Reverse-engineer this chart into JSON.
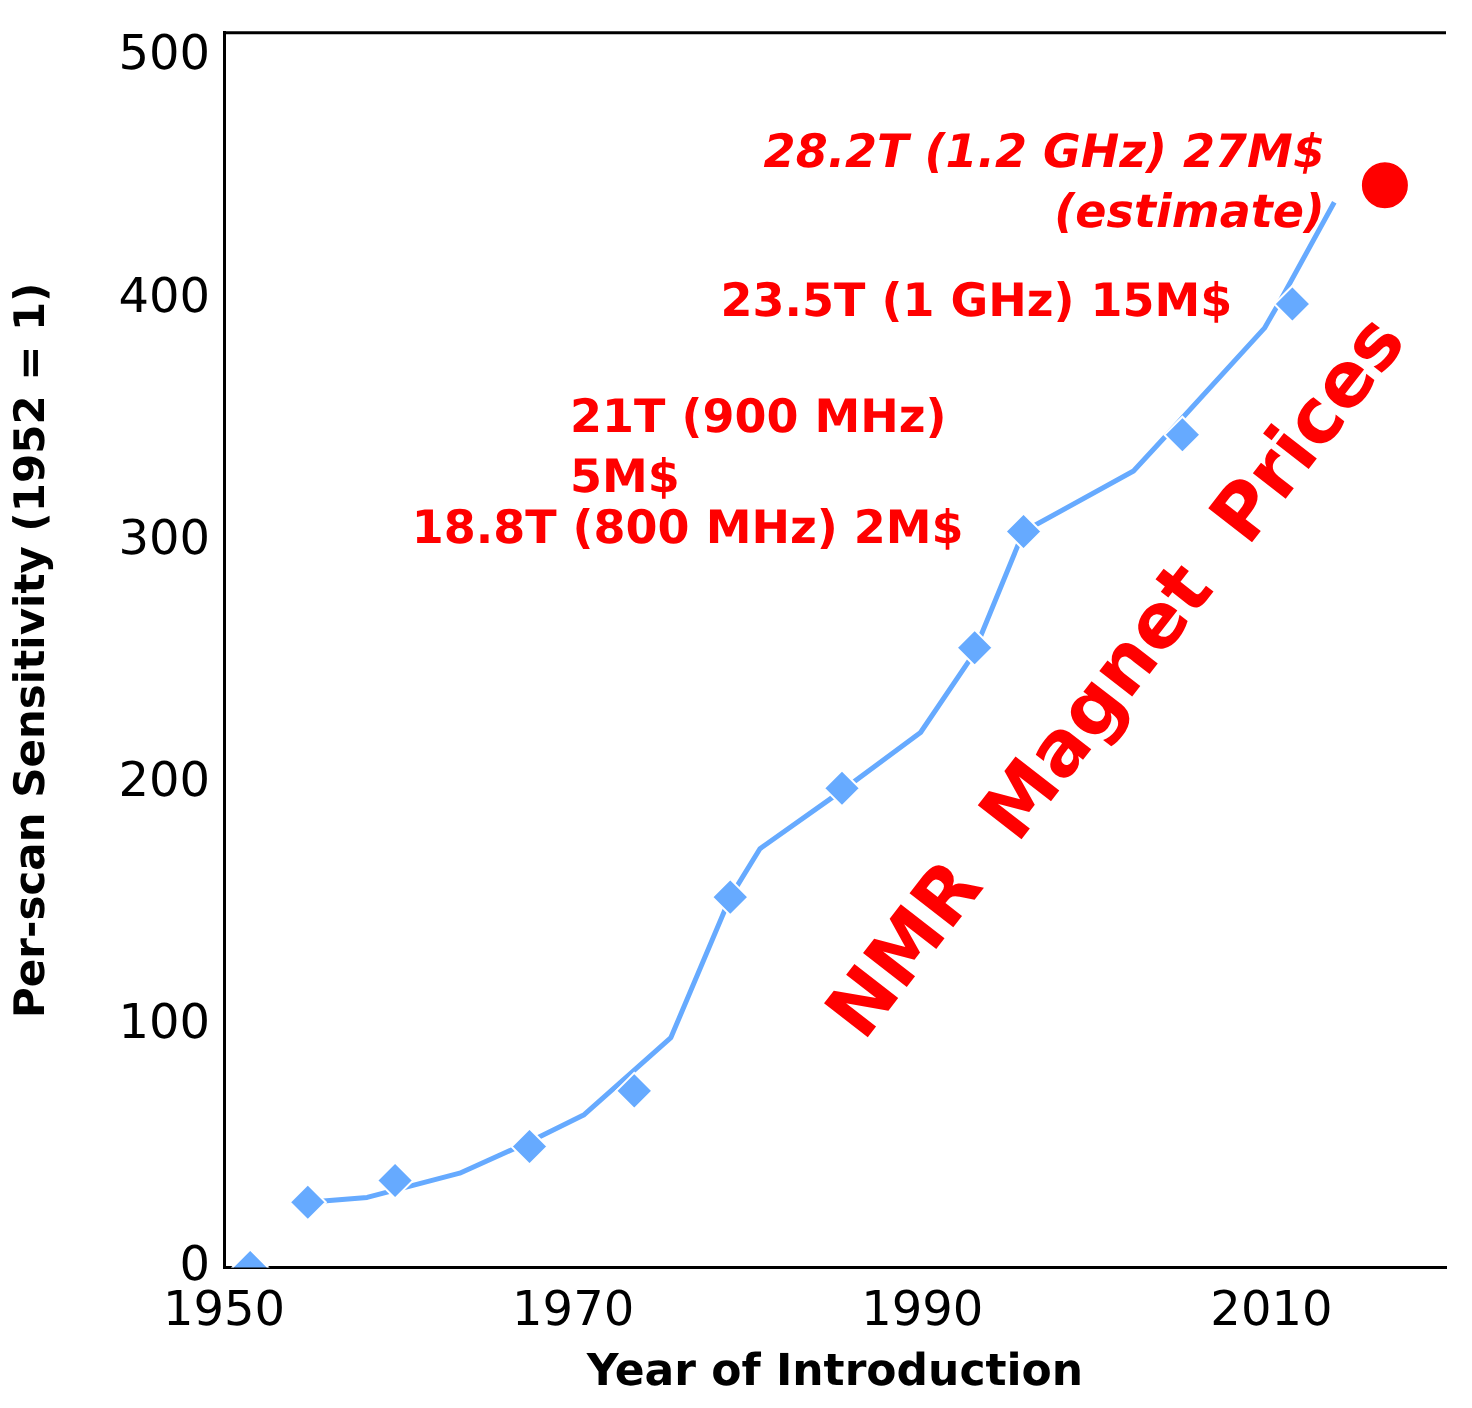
{
  "chart_data": {
    "type": "scatter",
    "xlabel": "Year of Introduction",
    "ylabel": "Per-scan Sensitivity (1952 = 1)",
    "xlim": [
      1950,
      2020
    ],
    "xticks": [
      1950,
      1970,
      1990,
      2010
    ],
    "ylim": [
      0,
      510
    ],
    "yticks": [
      0,
      100,
      200,
      300,
      400,
      500
    ],
    "grid": false,
    "legend": false,
    "series": [
      {
        "type": "line",
        "color": "#66aaff",
        "marker": "none",
        "line_style": "solid",
        "x": [
          1954.8,
          1958.2,
          1963.5,
          1967.5,
          1970.6,
          1975.6,
          1979.0,
          1980.7,
          1985.4,
          1989.9,
          1992.9,
          1995.8,
          2002.1,
          2004.4,
          2009.6,
          2010.4,
          2013.6
        ],
        "values": [
          27,
          29,
          39,
          52,
          63,
          95,
          153,
          173,
          197,
          221,
          253,
          304,
          329,
          347,
          388,
          398,
          440
        ]
      },
      {
        "type": "scatter",
        "color": "#66aaff",
        "marker": "diamond",
        "x": [
          1951.5,
          1954.8,
          1959.8,
          1967.5,
          1973.5,
          1979.0,
          1985.4,
          1993.0,
          1995.8,
          2004.9,
          2011.2
        ],
        "values": [
          0,
          27,
          36,
          50,
          73,
          153,
          198,
          256,
          304,
          344,
          398
        ]
      },
      {
        "type": "scatter",
        "color": "#ff0000",
        "marker": "circle",
        "x": [
          2016.5
        ],
        "values": [
          447
        ]
      }
    ],
    "annotations": [
      {
        "text": "28.2T (1.2 GHz) 27M$\n(estimate)",
        "x": 2016.5,
        "y": 447
      },
      {
        "text": "23.5T (1 GHz) 15M$",
        "x": 2011.2,
        "y": 398
      },
      "21T (900 MHz)\n5M$",
      {
        "text": "18.8T (800 MHz) 2M$",
        "x": 1995.8,
        "y": 304
      },
      "NMR  Magnet  Prices"
    ]
  }
}
